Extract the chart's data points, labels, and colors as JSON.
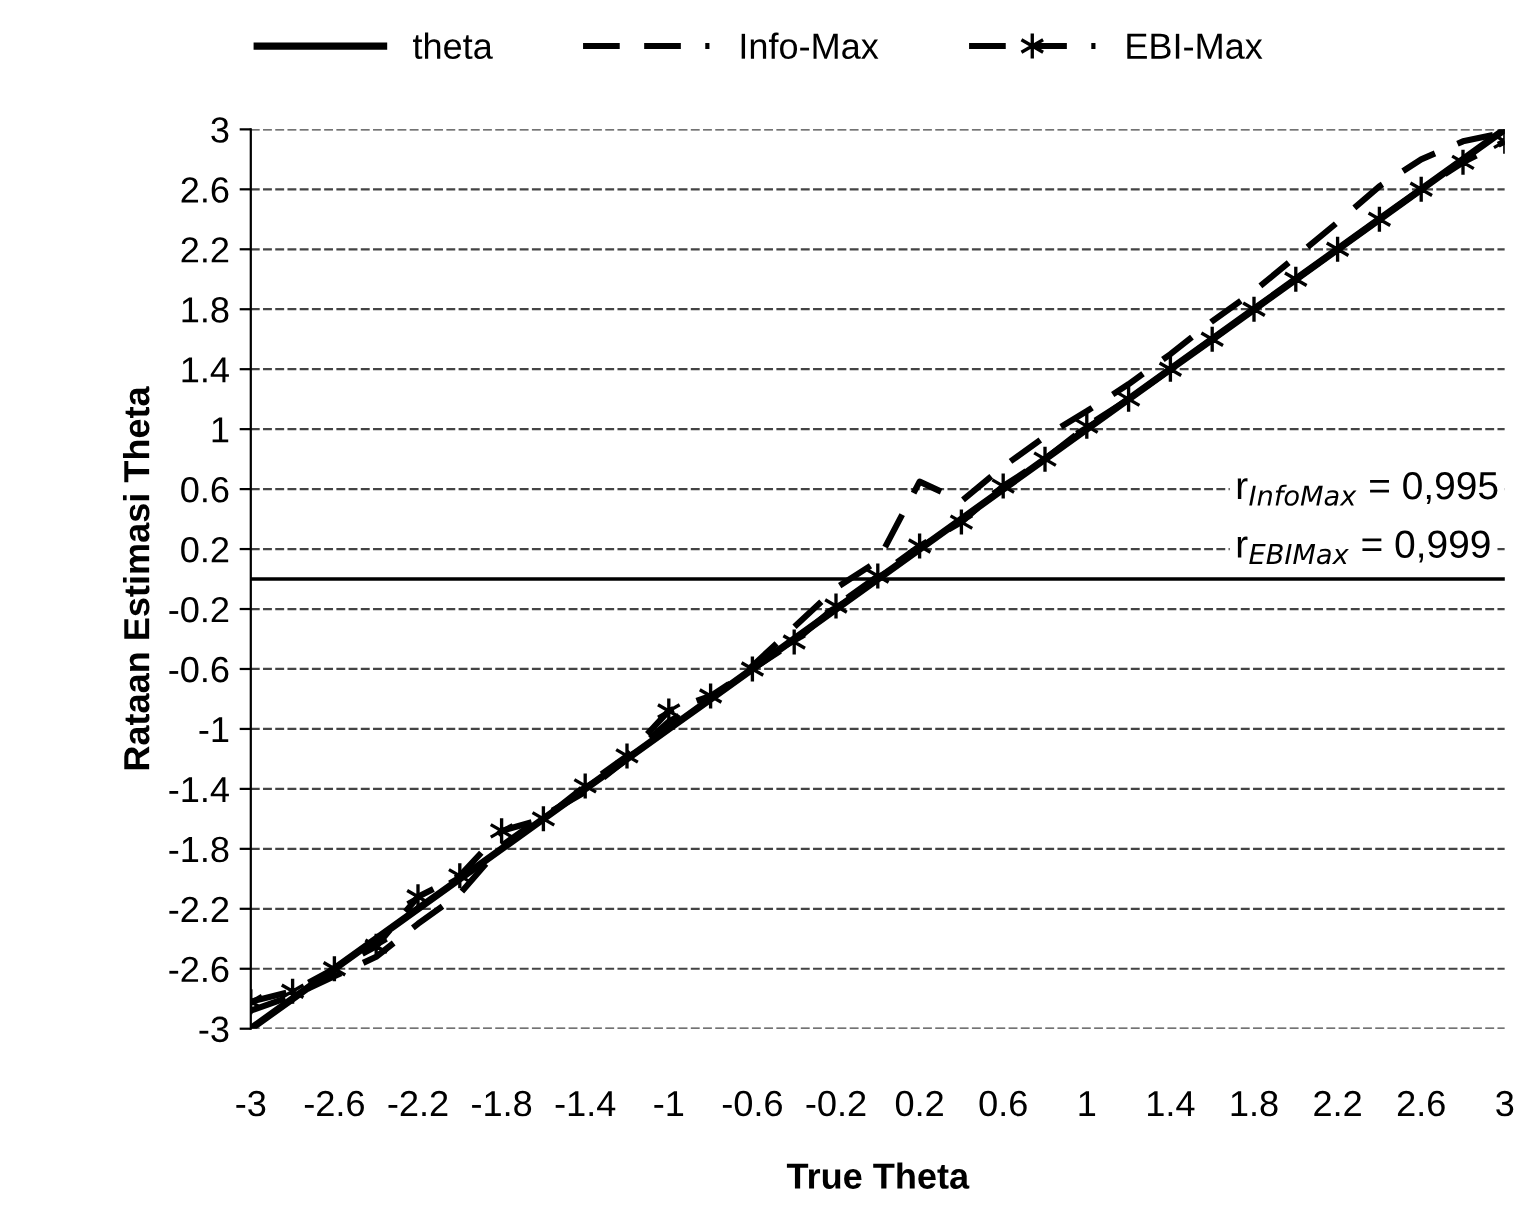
{
  "chart_data": {
    "type": "line",
    "xlabel": "True Theta",
    "ylabel": "Rataan Estimasi Theta",
    "x": [
      -3,
      -2.8,
      -2.6,
      -2.4,
      -2.2,
      -2,
      -1.8,
      -1.6,
      -1.4,
      -1.2,
      -1,
      -0.8,
      -0.6,
      -0.4,
      -0.2,
      0,
      0.2,
      0.4,
      0.6,
      0.8,
      1,
      1.2,
      1.4,
      1.6,
      1.8,
      2,
      2.2,
      2.4,
      2.6,
      2.8,
      3
    ],
    "series": [
      {
        "name": "theta",
        "color": "#000000",
        "line_style": "solid",
        "marker": "none",
        "values": [
          -3,
          -2.8,
          -2.6,
          -2.4,
          -2.2,
          -2,
          -1.8,
          -1.6,
          -1.4,
          -1.2,
          -1,
          -0.8,
          -0.6,
          -0.4,
          -0.2,
          0,
          0.2,
          0.4,
          0.6,
          0.8,
          1,
          1.2,
          1.4,
          1.6,
          1.8,
          2,
          2.2,
          2.4,
          2.6,
          2.8,
          3
        ]
      },
      {
        "name": "Info-Max",
        "color": "#000000",
        "line_style": "dashed",
        "marker": "none",
        "values": [
          -2.88,
          -2.78,
          -2.65,
          -2.52,
          -2.3,
          -2.1,
          -1.78,
          -1.58,
          -1.42,
          -1.2,
          -0.95,
          -0.8,
          -0.58,
          -0.32,
          -0.06,
          0.12,
          0.65,
          0.52,
          0.75,
          0.95,
          1.12,
          1.3,
          1.5,
          1.72,
          1.92,
          2.15,
          2.38,
          2.62,
          2.8,
          2.92,
          2.98
        ]
      },
      {
        "name": "EBI-Max",
        "color": "#000000",
        "line_style": "dashed",
        "marker": "cross",
        "values": [
          -2.82,
          -2.75,
          -2.6,
          -2.45,
          -2.12,
          -1.98,
          -1.68,
          -1.6,
          -1.38,
          -1.18,
          -0.88,
          -0.78,
          -0.6,
          -0.42,
          -0.18,
          0.02,
          0.22,
          0.38,
          0.62,
          0.8,
          1.02,
          1.2,
          1.4,
          1.6,
          1.8,
          2,
          2.2,
          2.4,
          2.6,
          2.78,
          2.92
        ]
      }
    ],
    "xlim": [
      -3,
      3
    ],
    "xticks": [
      -3,
      -2.6,
      -2.2,
      -1.8,
      -1.4,
      -1,
      -0.6,
      -0.2,
      0.2,
      0.6,
      1,
      1.4,
      1.8,
      2.2,
      2.6,
      3
    ],
    "ylim": [
      -3,
      3
    ],
    "yticks": [
      -3,
      -2.6,
      -2.2,
      -1.8,
      -1.4,
      -1,
      -0.6,
      -0.2,
      0.2,
      0.6,
      1,
      1.4,
      1.8,
      2.2,
      2.6,
      3
    ],
    "ref_lines": [
      {
        "axis": "y",
        "value": 0,
        "color": "#000000"
      }
    ],
    "annotations": [
      "r$_{InfoMax}$ = 0,995",
      "r$_{EBIMax}$ = 0,999"
    ],
    "grid": "y",
    "legend": "top"
  }
}
